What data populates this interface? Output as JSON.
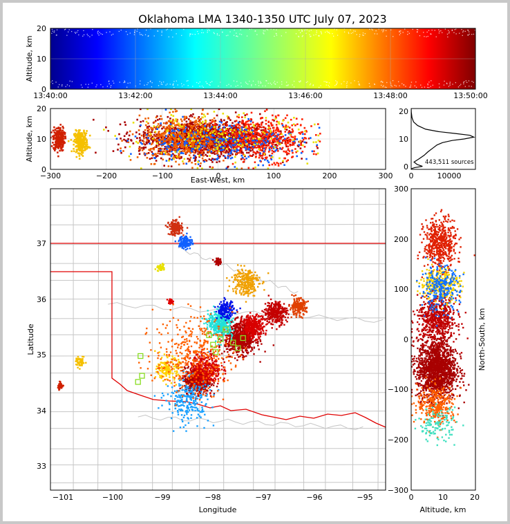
{
  "title": "Oklahoma LMA 1340-1350 UTC July 07, 2023",
  "colors": {
    "us_state_line": "#e00000",
    "county_line": "#c6c6c6",
    "station_marker": "#88dd22",
    "background": "#ffffff"
  },
  "colormap": "jet",
  "panels": {
    "time_height": {
      "ylabel": "Altitude, km",
      "yticks": [
        "0",
        "10",
        "20"
      ],
      "xticks": [
        "13:40:00",
        "13:42:00",
        "13:44:00",
        "13:46:00",
        "13:48:00",
        "13:50:00"
      ],
      "grid": true
    },
    "ew_height": {
      "xlabel": "East-West, km",
      "ylabel": "Altitude, km",
      "xticks": [
        "−300",
        "−200",
        "−100",
        "0",
        "100",
        "200",
        "300"
      ],
      "yticks": [
        "0",
        "10",
        "20"
      ],
      "grid": true
    },
    "alt_hist": {
      "xticks": [
        "0",
        "10000"
      ],
      "yticks": [
        "0",
        "10",
        "20"
      ],
      "annotation": "443,511 sources"
    },
    "plan_view": {
      "xlabel": "Longitude",
      "ylabel": "Latitude",
      "xticks": [
        "−101",
        "−100",
        "−99",
        "−98",
        "−97",
        "−96",
        "−95"
      ],
      "yticks": [
        "33",
        "34",
        "35",
        "36",
        "37"
      ]
    },
    "ns_height": {
      "xlabel": "Altitude, km",
      "ylabel": "North-South, km",
      "xticks": [
        "0",
        "10",
        "20"
      ],
      "yticks": [
        "−300",
        "−200",
        "−100",
        "0",
        "100",
        "200",
        "300"
      ]
    }
  },
  "chart_data": [
    {
      "type": "scatter",
      "name": "time_height",
      "x_range": [
        "13:40:00",
        "13:50:00"
      ],
      "ylim": [
        0,
        20
      ],
      "color_by": "time",
      "density_bands_km": [
        [
          0,
          3
        ],
        [
          14,
          20
        ]
      ],
      "sparse_band_km": [
        3,
        14
      ]
    },
    {
      "type": "scatter",
      "name": "east_west_altitude",
      "xlim": [
        -300,
        300
      ],
      "ylim": [
        0,
        20
      ],
      "color_by": "time",
      "clusters": [
        {
          "x": -285,
          "alt": 10,
          "spread_x": 10,
          "spread_alt": 4,
          "n": 220,
          "color": "#d02000"
        },
        {
          "x": -245,
          "alt": 9,
          "spread_x": 12,
          "spread_alt": 3.5,
          "n": 260,
          "color": "#f5c000"
        },
        {
          "x": -20,
          "alt": 10,
          "spread_x": 120,
          "spread_alt": 6,
          "n": 1600,
          "color": "#a80000"
        },
        {
          "x": -60,
          "alt": 10,
          "spread_x": 80,
          "spread_alt": 7,
          "n": 600,
          "color": "#f06000"
        },
        {
          "x": 80,
          "alt": 10,
          "spread_x": 80,
          "spread_alt": 7,
          "n": 500,
          "color": "#ff2000"
        },
        {
          "x": 0,
          "alt": 9,
          "spread_x": 150,
          "spread_alt": 7,
          "n": 300,
          "color": "#1060ff"
        },
        {
          "x": 0,
          "alt": 10,
          "spread_x": 170,
          "spread_alt": 8,
          "n": 200,
          "color": "#e8e000"
        }
      ]
    },
    {
      "type": "line",
      "name": "altitude_histogram",
      "xlim": [
        0,
        16000
      ],
      "ylim": [
        0,
        20
      ],
      "points": [
        [
          0,
          0.2
        ],
        [
          900,
          0.6
        ],
        [
          2800,
          1.0
        ],
        [
          1500,
          1.6
        ],
        [
          700,
          2.4
        ],
        [
          1900,
          3.4
        ],
        [
          3200,
          4.6
        ],
        [
          4200,
          5.8
        ],
        [
          5400,
          7.0
        ],
        [
          6400,
          8.0
        ],
        [
          7800,
          8.8
        ],
        [
          10200,
          9.5
        ],
        [
          13200,
          10.0
        ],
        [
          15600,
          10.6
        ],
        [
          14600,
          11.2
        ],
        [
          11000,
          11.8
        ],
        [
          6800,
          12.4
        ],
        [
          3600,
          13.2
        ],
        [
          1600,
          14.4
        ],
        [
          600,
          15.6
        ],
        [
          200,
          17.0
        ],
        [
          40,
          18.8
        ],
        [
          0,
          20
        ]
      ]
    },
    {
      "type": "scatter",
      "name": "plan_view",
      "xlim": [
        -101.25,
        -94.55
      ],
      "ylim": [
        32.6,
        37.95
      ],
      "color_by": "time",
      "stations": [
        [
          -99.45,
          34.98
        ],
        [
          -99.42,
          34.63
        ],
        [
          -99.5,
          34.52
        ],
        [
          -98.08,
          35.35
        ],
        [
          -98.0,
          35.18
        ],
        [
          -97.85,
          35.28
        ],
        [
          -97.6,
          35.22
        ],
        [
          -97.4,
          35.3
        ],
        [
          -97.5,
          35.12
        ],
        [
          -97.75,
          35.45
        ],
        [
          -97.95,
          35.05
        ]
      ],
      "clusters": [
        {
          "lon": -98.32,
          "lat": 34.55,
          "spread": 0.22,
          "n": 700,
          "color": "#a80000"
        },
        {
          "lon": -98.15,
          "lat": 34.75,
          "spread": 0.28,
          "n": 350,
          "color": "#d80000"
        },
        {
          "lon": -97.45,
          "lat": 35.3,
          "spread": 0.28,
          "n": 700,
          "color": "#b00000"
        },
        {
          "lon": -97.2,
          "lat": 35.5,
          "spread": 0.2,
          "n": 300,
          "color": "#d80000"
        },
        {
          "lon": -96.75,
          "lat": 35.75,
          "spread": 0.2,
          "n": 300,
          "color": "#c40000"
        },
        {
          "lon": -96.3,
          "lat": 35.85,
          "spread": 0.15,
          "n": 180,
          "color": "#e04000"
        },
        {
          "lon": -97.85,
          "lat": 35.55,
          "spread": 0.22,
          "n": 380,
          "color": "#22e0d8"
        },
        {
          "lon": -97.75,
          "lat": 35.8,
          "spread": 0.15,
          "n": 180,
          "color": "#0010e8"
        },
        {
          "lon": -98.75,
          "lat": 37.25,
          "spread": 0.12,
          "n": 200,
          "color": "#d03010"
        },
        {
          "lon": -98.55,
          "lat": 37.0,
          "spread": 0.12,
          "n": 120,
          "color": "#1060ff"
        },
        {
          "lon": -97.9,
          "lat": 36.65,
          "spread": 0.06,
          "n": 50,
          "color": "#b00000"
        },
        {
          "lon": -100.65,
          "lat": 34.87,
          "spread": 0.08,
          "n": 60,
          "color": "#f5c000"
        },
        {
          "lon": -101.05,
          "lat": 34.45,
          "spread": 0.06,
          "n": 40,
          "color": "#d02000"
        },
        {
          "lon": -98.85,
          "lat": 35.95,
          "spread": 0.05,
          "n": 30,
          "color": "#e00000"
        },
        {
          "lon": -99.05,
          "lat": 36.55,
          "spread": 0.06,
          "n": 40,
          "color": "#e8e000"
        },
        {
          "lon": -97.35,
          "lat": 36.3,
          "spread": 0.25,
          "n": 250,
          "color": "#f0a000"
        },
        {
          "lon": -98.9,
          "lat": 34.75,
          "spread": 0.2,
          "n": 150,
          "color": "#ffd000"
        },
        {
          "lon": -98.5,
          "lat": 34.2,
          "spread": 0.4,
          "n": 250,
          "color": "#18a0ff"
        },
        {
          "lon": -98.4,
          "lat": 35.0,
          "spread": 0.7,
          "n": 400,
          "color": "#ff6000"
        }
      ]
    },
    {
      "type": "scatter",
      "name": "altitude_north_south",
      "xlim": [
        0,
        20
      ],
      "ylim": [
        -300,
        300
      ],
      "color_by": "time",
      "clusters": [
        {
          "alt": 8,
          "ns": -60,
          "spread_alt": 6,
          "spread_ns": 55,
          "n": 1500,
          "color": "#a80000"
        },
        {
          "alt": 8,
          "ns": 40,
          "spread_alt": 6,
          "spread_ns": 40,
          "n": 600,
          "color": "#c00000"
        },
        {
          "alt": 9,
          "ns": 190,
          "spread_alt": 5,
          "spread_ns": 45,
          "n": 500,
          "color": "#e02000"
        },
        {
          "alt": 9,
          "ns": 110,
          "spread_alt": 6,
          "spread_ns": 30,
          "n": 300,
          "color": "#f5d000"
        },
        {
          "alt": 9,
          "ns": 100,
          "spread_alt": 6,
          "spread_ns": 40,
          "n": 250,
          "color": "#1070ff"
        },
        {
          "alt": 8,
          "ns": -130,
          "spread_alt": 6,
          "spread_ns": 35,
          "n": 300,
          "color": "#ff6000"
        },
        {
          "alt": 8,
          "ns": -170,
          "spread_alt": 6,
          "spread_ns": 30,
          "n": 120,
          "color": "#40e0c0"
        }
      ]
    }
  ]
}
